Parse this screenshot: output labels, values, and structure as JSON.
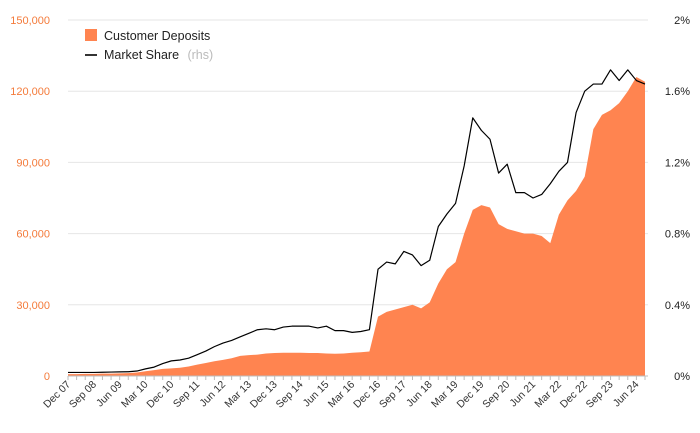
{
  "chart_data": {
    "type": "area",
    "x": [
      "Dec 07",
      "Mar 08",
      "Jun 08",
      "Sep 08",
      "Dec 08",
      "Mar 09",
      "Jun 09",
      "Sep 09",
      "Dec 09",
      "Mar 10",
      "Jun 10",
      "Sep 10",
      "Dec 10",
      "Mar 11",
      "Jun 11",
      "Sep 11",
      "Dec 11",
      "Mar 12",
      "Jun 12",
      "Sep 12",
      "Dec 12",
      "Mar 13",
      "Jun 13",
      "Sep 13",
      "Dec 13",
      "Mar 14",
      "Jun 14",
      "Sep 14",
      "Dec 14",
      "Mar 15",
      "Jun 15",
      "Sep 15",
      "Dec 15",
      "Mar 16",
      "Jun 16",
      "Sep 16",
      "Dec 16",
      "Mar 17",
      "Jun 17",
      "Sep 17",
      "Dec 17",
      "Mar 18",
      "Jun 18",
      "Sep 18",
      "Dec 18",
      "Mar 19",
      "Jun 19",
      "Sep 19",
      "Dec 19",
      "Mar 20",
      "Jun 20",
      "Sep 20",
      "Dec 20",
      "Mar 21",
      "Jun 21",
      "Sep 21",
      "Dec 21",
      "Mar 22",
      "Jun 22",
      "Sep 22",
      "Dec 22",
      "Mar 23",
      "Jun 23",
      "Sep 23",
      "Dec 23",
      "Mar 24",
      "Jun 24",
      "Sep 24"
    ],
    "x_tick_labels": [
      "Dec 07",
      "Sep 08",
      "Jun 09",
      "Mar 10",
      "Dec 10",
      "Sep 11",
      "Jun 12",
      "Mar 13",
      "Dec 13",
      "Sep 14",
      "Jun 15",
      "Mar 16",
      "Dec 16",
      "Sep 17",
      "Jun 18",
      "Mar 19",
      "Dec 19",
      "Sep 20",
      "Jun 21",
      "Mar 22",
      "Dec 22",
      "Sep 23",
      "Jun 24"
    ],
    "series": [
      {
        "name": "Customer Deposits",
        "axis": "left",
        "style": "area",
        "color": "#ff8450",
        "values": [
          800,
          800,
          900,
          900,
          1000,
          1000,
          1100,
          1200,
          1500,
          2000,
          2500,
          3000,
          3200,
          3500,
          4000,
          4800,
          5500,
          6200,
          6800,
          7500,
          8500,
          8800,
          9000,
          9500,
          9700,
          9800,
          9800,
          9800,
          9700,
          9700,
          9500,
          9400,
          9500,
          9800,
          10000,
          10300,
          25000,
          27000,
          28000,
          29000,
          30000,
          28500,
          31000,
          39000,
          45000,
          48000,
          60000,
          70000,
          72000,
          71000,
          64000,
          62000,
          61000,
          60000,
          60000,
          59000,
          56000,
          68000,
          74000,
          78000,
          84000,
          104000,
          110000,
          112000,
          115000,
          120000,
          126000,
          124000
        ]
      },
      {
        "name": "Market Share",
        "name_suffix": "(rhs)",
        "axis": "right",
        "style": "line",
        "color": "#000000",
        "values": [
          0.02,
          0.02,
          0.02,
          0.02,
          0.021,
          0.022,
          0.023,
          0.024,
          0.028,
          0.04,
          0.05,
          0.07,
          0.085,
          0.09,
          0.1,
          0.12,
          0.14,
          0.165,
          0.185,
          0.2,
          0.22,
          0.24,
          0.26,
          0.265,
          0.26,
          0.275,
          0.28,
          0.28,
          0.28,
          0.27,
          0.28,
          0.255,
          0.255,
          0.245,
          0.25,
          0.26,
          0.6,
          0.64,
          0.63,
          0.7,
          0.68,
          0.62,
          0.65,
          0.84,
          0.91,
          0.97,
          1.18,
          1.45,
          1.38,
          1.33,
          1.14,
          1.19,
          1.03,
          1.03,
          1.0,
          1.02,
          1.08,
          1.15,
          1.2,
          1.48,
          1.6,
          1.64,
          1.64,
          1.72,
          1.66,
          1.72,
          1.66,
          1.64
        ]
      }
    ],
    "y_left": {
      "lim": [
        0,
        150000
      ],
      "ticks": [
        0,
        30000,
        60000,
        90000,
        120000,
        150000
      ],
      "tick_labels": [
        "0",
        "30,000",
        "60,000",
        "90,000",
        "120,000",
        "150,000"
      ]
    },
    "y_right": {
      "lim": [
        0,
        2
      ],
      "ticks": [
        0,
        0.4,
        0.8,
        1.2,
        1.6,
        2
      ],
      "tick_labels": [
        "0%",
        "0.4%",
        "0.8%",
        "1.2%",
        "1.6%",
        "2%"
      ]
    },
    "title": "",
    "xlabel": "",
    "ylabel": "",
    "grid": "horizontal",
    "legend_position": "top-left",
    "colors": {
      "left_axis": "#f47b3b",
      "right_axis": "#222222",
      "grid": "#e6e6e6"
    }
  }
}
